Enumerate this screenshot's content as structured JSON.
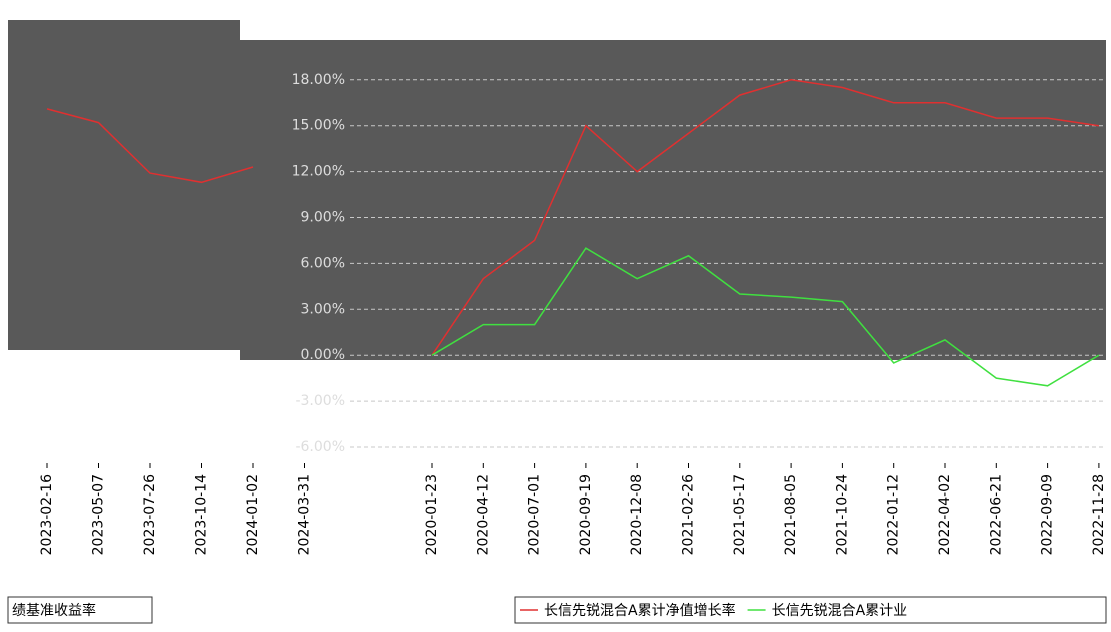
{
  "chart_data": [
    {
      "type": "line",
      "categories": [
        "2020-01-23",
        "2020-04-12",
        "2020-07-01",
        "2020-09-19",
        "2020-12-08",
        "2021-02-26",
        "2021-05-17",
        "2021-08-05",
        "2021-10-24",
        "2022-01-12",
        "2022-04-02",
        "2022-06-21",
        "2022-09-09",
        "2022-11-28"
      ],
      "series": [
        {
          "name": "长信先锐混合A累计净值增长率",
          "color": "#e03030",
          "values": [
            0,
            5,
            7.5,
            15,
            12,
            14.5,
            17,
            18,
            17.5,
            16.5,
            16.5,
            15.5,
            15.5,
            15
          ]
        },
        {
          "name": "长信先锐混合A累计业",
          "color": "#40e040",
          "values": [
            0,
            2,
            2,
            7,
            5,
            6.5,
            4,
            3.8,
            3.5,
            -0.5,
            1,
            -1.5,
            -2,
            0
          ]
        }
      ],
      "ylim": [
        -6,
        19
      ],
      "yticks": [
        {
          "value": -6,
          "label": "-6.00%"
        },
        {
          "value": -3,
          "label": "-3.00%"
        },
        {
          "value": 0,
          "label": "0.00%"
        },
        {
          "value": 3,
          "label": "3.00%"
        },
        {
          "value": 6,
          "label": "6.00%"
        },
        {
          "value": 9,
          "label": "9.00%"
        },
        {
          "value": 12,
          "label": "12.00%"
        },
        {
          "value": 15,
          "label": "15.00%"
        },
        {
          "value": 18,
          "label": "18.00%"
        }
      ],
      "grid": true
    },
    {
      "type": "line",
      "categories": [
        "2023-02-16",
        "2023-05-07",
        "2023-07-26",
        "2023-10-14",
        "2024-01-02",
        "2024-03-31"
      ],
      "series": [
        {
          "name": "绩基准收益率",
          "color": "#e03030",
          "values": [
            16.1,
            15.2,
            11.9,
            11.3,
            12.3,
            null
          ]
        }
      ]
    }
  ]
}
